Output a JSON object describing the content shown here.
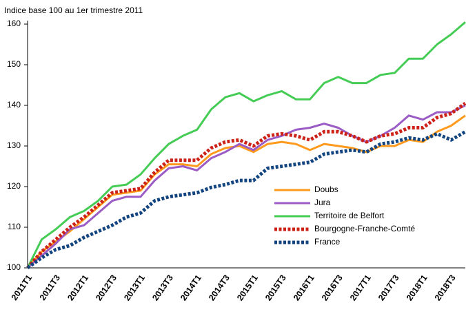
{
  "chart_data": {
    "type": "line",
    "title": "Indice base 100 au 1er trimestre 2011",
    "categories": [
      "2011T1",
      null,
      "2011T3",
      null,
      "2012T1",
      null,
      "2012T3",
      null,
      "2013T1",
      null,
      "2013T3",
      null,
      "2014T1",
      null,
      "2014T3",
      null,
      "2015T1",
      null,
      "2015T3",
      null,
      "2016T1",
      null,
      "2016T3",
      null,
      "2017T1",
      null,
      "2017T3",
      null,
      "2018T1",
      null,
      "2018T3",
      null
    ],
    "series": [
      {
        "name": "Doubs",
        "color": "#ff9a1f",
        "dashed": false,
        "values": [
          100,
          104,
          106.5,
          109,
          112,
          115,
          118,
          118.5,
          119,
          123,
          125.5,
          125.5,
          125,
          128,
          129.5,
          130,
          128.5,
          130.5,
          131,
          130.5,
          129,
          130.5,
          130,
          129.5,
          128.5,
          130,
          130,
          131.5,
          131,
          133.5,
          135,
          137.5
        ]
      },
      {
        "name": "Jura",
        "color": "#9b5cc6",
        "dashed": false,
        "values": [
          100,
          103,
          106,
          109.5,
          110.5,
          113.5,
          116.5,
          117.5,
          117.5,
          121.5,
          124.5,
          125,
          124,
          127,
          128.5,
          130.5,
          129,
          131.5,
          132.5,
          134,
          134.5,
          135.5,
          134.5,
          132.5,
          131,
          132.5,
          134.5,
          137.5,
          136.5,
          138.3,
          138.3,
          140
        ]
      },
      {
        "name": "Territoire de Belfort",
        "color": "#45cc55",
        "dashed": false,
        "values": [
          100,
          107,
          109.5,
          112.5,
          114,
          116.5,
          120,
          120.5,
          123,
          127,
          130.5,
          132.5,
          134,
          139,
          142,
          143,
          141,
          142.5,
          143.5,
          141.5,
          141.5,
          145.5,
          147,
          145.5,
          145.5,
          147.5,
          148,
          151.5,
          151.5,
          155,
          157.5,
          160.5
        ]
      },
      {
        "name": "Bourgogne-Franche-Comté",
        "color": "#cc2218",
        "dashed": true,
        "values": [
          100,
          104,
          107,
          110,
          112.5,
          115.5,
          118.5,
          119,
          119.5,
          123.5,
          126.5,
          126.5,
          126.5,
          129.5,
          131,
          131.5,
          130,
          132.5,
          133,
          132.5,
          131.5,
          133.5,
          133.5,
          132.5,
          131,
          132.5,
          133,
          134.5,
          134.5,
          137,
          138,
          140.5
        ]
      },
      {
        "name": "France",
        "color": "#12447f",
        "dashed": true,
        "values": [
          100,
          102.5,
          104.5,
          105.5,
          107.5,
          109,
          110.5,
          112.5,
          113.5,
          116.5,
          117.5,
          118,
          118.5,
          119.8,
          120.5,
          121.5,
          121.5,
          124.5,
          125,
          125.5,
          126,
          128,
          128.5,
          129,
          128.5,
          130.5,
          131,
          132,
          131.5,
          133,
          131.5,
          133.5
        ]
      }
    ],
    "ylim": [
      100,
      160
    ],
    "yticks": [
      100,
      110,
      120,
      130,
      140,
      150,
      160
    ],
    "grid": false,
    "legend": "lower right"
  }
}
